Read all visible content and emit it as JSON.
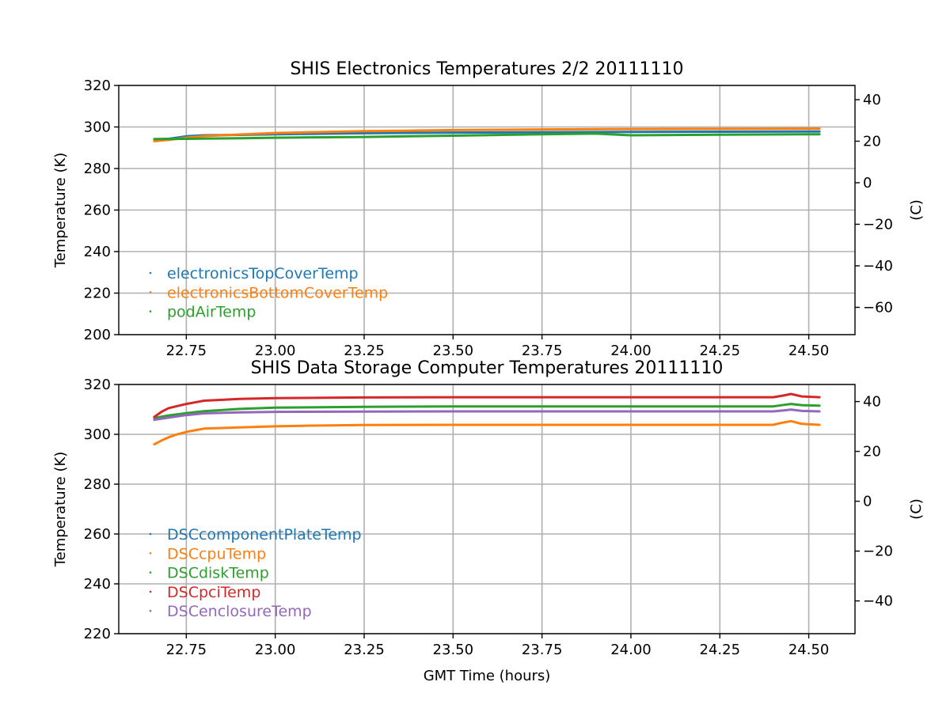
{
  "chart_data": [
    {
      "type": "line",
      "title": "SHIS Electronics Temperatures 2/2 20111110",
      "xlabel": "",
      "ylabel": "Temperature (K)",
      "y2label": "(C)",
      "xlim": [
        22.56,
        24.63
      ],
      "ylim": [
        200,
        320
      ],
      "x_ticks": [
        22.75,
        23.0,
        23.25,
        23.5,
        23.75,
        24.0,
        24.25,
        24.5
      ],
      "x_tick_labels": [
        "22.75",
        "23.00",
        "23.25",
        "23.50",
        "23.75",
        "24.00",
        "24.25",
        "24.50"
      ],
      "y_ticks": [
        200,
        220,
        240,
        260,
        280,
        300,
        320
      ],
      "y_tick_labels": [
        "200",
        "220",
        "240",
        "260",
        "280",
        "300",
        "320"
      ],
      "y2_ticks": [
        -60,
        -40,
        -20,
        0,
        20,
        40
      ],
      "y2_tick_labels": [
        "−60",
        "−40",
        "−20",
        "0",
        "20",
        "40"
      ],
      "grid": true,
      "legend": "lower-left",
      "series": [
        {
          "name": "electronicsTopCoverTemp",
          "color": "#1f77b4",
          "x": [
            22.66,
            22.7,
            22.75,
            22.8,
            22.9,
            23.0,
            23.25,
            23.5,
            23.75,
            24.0,
            24.25,
            24.5,
            24.53
          ],
          "y": [
            294,
            294.3,
            295.5,
            296.0,
            296.2,
            296.5,
            297.0,
            297.3,
            297.5,
            297.6,
            297.7,
            297.8,
            297.8
          ]
        },
        {
          "name": "electronicsBottomCoverTemp",
          "color": "#ff7f0e",
          "x": [
            22.66,
            22.7,
            22.75,
            22.8,
            22.9,
            23.0,
            23.25,
            23.5,
            23.75,
            24.0,
            24.25,
            24.5,
            24.53
          ],
          "y": [
            293.2,
            293.8,
            294.8,
            295.6,
            296.4,
            297.1,
            298.0,
            298.5,
            298.8,
            299.0,
            299.1,
            299.2,
            299.2
          ]
        },
        {
          "name": "podAirTemp",
          "color": "#2ca02c",
          "x": [
            22.66,
            22.75,
            22.9,
            23.0,
            23.25,
            23.5,
            23.75,
            23.9,
            24.0,
            24.25,
            24.5,
            24.53
          ],
          "y": [
            294.2,
            294.3,
            294.6,
            294.8,
            295.2,
            295.8,
            296.5,
            296.8,
            296.0,
            296.3,
            296.5,
            296.5
          ]
        }
      ]
    },
    {
      "type": "line",
      "title": "SHIS Data Storage Computer Temperatures 20111110",
      "xlabel": "GMT Time (hours)",
      "ylabel": "Temperature (K)",
      "y2label": "(C)",
      "xlim": [
        22.56,
        24.63
      ],
      "ylim": [
        220,
        320
      ],
      "x_ticks": [
        22.75,
        23.0,
        23.25,
        23.5,
        23.75,
        24.0,
        24.25,
        24.5
      ],
      "x_tick_labels": [
        "22.75",
        "23.00",
        "23.25",
        "23.50",
        "23.75",
        "24.00",
        "24.25",
        "24.50"
      ],
      "y_ticks": [
        220,
        240,
        260,
        280,
        300,
        320
      ],
      "y_tick_labels": [
        "220",
        "240",
        "260",
        "280",
        "300",
        "320"
      ],
      "y2_ticks": [
        -40,
        -20,
        0,
        20,
        40
      ],
      "y2_tick_labels": [
        "−40",
        "−20",
        "0",
        "20",
        "40"
      ],
      "grid": true,
      "legend": "lower-left",
      "series": [
        {
          "name": "DSCcomponentPlateTemp",
          "color": "#1f77b4",
          "x": [],
          "y": []
        },
        {
          "name": "DSCcpuTemp",
          "color": "#ff7f0e",
          "x": [
            22.66,
            22.68,
            22.7,
            22.72,
            22.75,
            22.8,
            22.9,
            23.0,
            23.1,
            23.25,
            23.5,
            24.0,
            24.4,
            24.42,
            24.45,
            24.48,
            24.53
          ],
          "y": [
            296,
            297.5,
            298.8,
            299.8,
            301,
            302.3,
            302.8,
            303.2,
            303.5,
            303.7,
            303.8,
            303.8,
            303.8,
            304.5,
            305.3,
            304.2,
            303.8
          ]
        },
        {
          "name": "DSCdiskTemp",
          "color": "#2ca02c",
          "x": [
            22.66,
            22.7,
            22.75,
            22.8,
            22.9,
            23.0,
            23.25,
            23.5,
            24.0,
            24.4,
            24.43,
            24.45,
            24.48,
            24.53
          ],
          "y": [
            306.5,
            307.6,
            308.5,
            309.3,
            310.2,
            310.7,
            311.0,
            311.2,
            311.2,
            311.2,
            311.8,
            312.2,
            311.7,
            311.5
          ]
        },
        {
          "name": "DSCpciTemp",
          "color": "#d62728",
          "x": [
            22.66,
            22.68,
            22.7,
            22.75,
            22.8,
            22.9,
            23.0,
            23.25,
            23.5,
            24.0,
            24.4,
            24.43,
            24.45,
            24.48,
            24.53
          ],
          "y": [
            307,
            309,
            310.5,
            312.2,
            313.5,
            314.2,
            314.5,
            314.8,
            314.9,
            314.9,
            314.9,
            315.6,
            316.2,
            315.2,
            314.9
          ]
        },
        {
          "name": "DSCenclosureTemp",
          "color": "#9467bd",
          "x": [
            22.66,
            22.7,
            22.75,
            22.8,
            22.9,
            23.0,
            23.25,
            23.5,
            24.0,
            24.4,
            24.43,
            24.45,
            24.48,
            24.53
          ],
          "y": [
            305.8,
            306.7,
            307.7,
            308.4,
            308.8,
            309.0,
            309.1,
            309.2,
            309.2,
            309.2,
            309.6,
            309.9,
            309.4,
            309.2
          ]
        }
      ]
    }
  ]
}
